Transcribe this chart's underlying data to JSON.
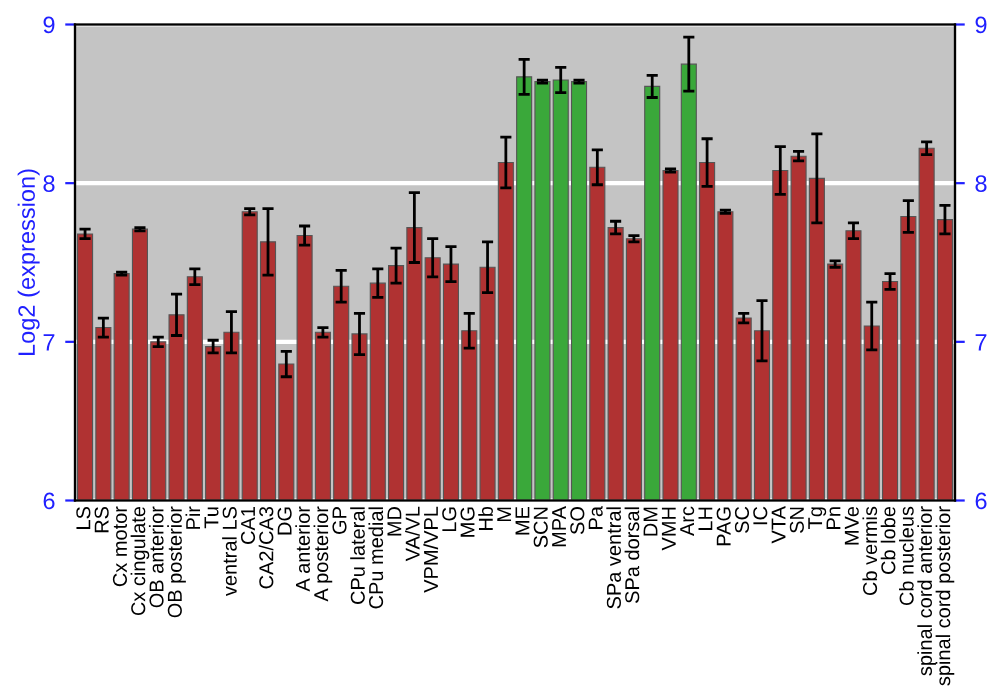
{
  "chart_data": {
    "type": "bar",
    "ylabel": "Log2 (expression)",
    "categories": [
      "LS",
      "RS",
      "Cx motor",
      "Cx cingulate",
      "OB anterior",
      "OB posterior",
      "Pir",
      "Tu",
      "ventral LS",
      "CA1",
      "CA2/CA3",
      "DG",
      "A anterior",
      "A posterior",
      "GP",
      "CPu lateral",
      "CPu medial",
      "MD",
      "VA/VL",
      "VPM/VPL",
      "LG",
      "MG",
      "Hb",
      "M",
      "ME",
      "SCN",
      "MPA",
      "SO",
      "Pa",
      "SPa ventral",
      "SPa dorsal",
      "DM",
      "VMH",
      "Arc",
      "LH",
      "PAG",
      "SC",
      "IC",
      "VTA",
      "SN",
      "Tg",
      "Pn",
      "MVe",
      "Cb vermis",
      "Cb lobe",
      "Cb nucleus",
      "spinal cord anterior",
      "spinal cord posterior"
    ],
    "values": [
      7.68,
      7.09,
      7.43,
      7.71,
      7.0,
      7.17,
      7.41,
      6.97,
      7.06,
      7.82,
      7.63,
      6.86,
      7.67,
      7.06,
      7.35,
      7.05,
      7.37,
      7.48,
      7.72,
      7.53,
      7.49,
      7.07,
      7.47,
      8.13,
      8.67,
      8.64,
      8.65,
      8.64,
      8.1,
      7.72,
      7.65,
      8.61,
      8.08,
      8.75,
      8.13,
      7.82,
      7.15,
      7.07,
      8.08,
      8.17,
      8.03,
      7.49,
      7.7,
      7.1,
      7.38,
      7.79,
      8.22,
      7.77
    ],
    "errors": [
      0.03,
      0.06,
      0.01,
      0.01,
      0.03,
      0.13,
      0.05,
      0.04,
      0.13,
      0.02,
      0.21,
      0.08,
      0.06,
      0.03,
      0.1,
      0.13,
      0.09,
      0.11,
      0.22,
      0.12,
      0.11,
      0.11,
      0.16,
      0.16,
      0.11,
      0.01,
      0.08,
      0.01,
      0.11,
      0.04,
      0.02,
      0.07,
      0.01,
      0.17,
      0.15,
      0.01,
      0.03,
      0.19,
      0.15,
      0.03,
      0.28,
      0.02,
      0.05,
      0.15,
      0.05,
      0.1,
      0.04,
      0.09
    ],
    "colors": [
      "#b03232",
      "#b03232",
      "#b03232",
      "#b03232",
      "#b03232",
      "#b03232",
      "#b03232",
      "#b03232",
      "#b03232",
      "#b03232",
      "#b03232",
      "#b03232",
      "#b03232",
      "#b03232",
      "#b03232",
      "#b03232",
      "#b03232",
      "#b03232",
      "#b03232",
      "#b03232",
      "#b03232",
      "#b03232",
      "#b03232",
      "#b03232",
      "#3aa83a",
      "#3aa83a",
      "#3aa83a",
      "#3aa83a",
      "#b03232",
      "#b03232",
      "#b03232",
      "#3aa83a",
      "#b03232",
      "#3aa83a",
      "#b03232",
      "#b03232",
      "#b03232",
      "#b03232",
      "#b03232",
      "#b03232",
      "#b03232",
      "#b03232",
      "#b03232",
      "#b03232",
      "#b03232",
      "#b03232",
      "#b03232",
      "#b03232"
    ],
    "ylim": [
      6,
      9
    ],
    "yticks": [
      6,
      7,
      8,
      9
    ],
    "y2lim": [
      6,
      9
    ],
    "y2ticks": [
      6,
      7,
      8,
      9
    ],
    "grid": "y"
  }
}
